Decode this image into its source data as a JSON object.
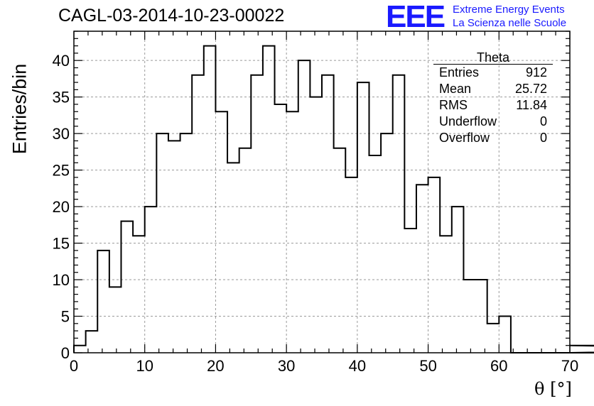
{
  "title": "CAGL-03-2014-10-23-00022",
  "logo": {
    "mark": "EEE",
    "line1": "Extreme Energy Events",
    "line2": "La Scienza nelle Scuole",
    "color": "#1a1aff"
  },
  "stats": {
    "name": "Theta",
    "rows": [
      {
        "label": "Entries",
        "value": "912"
      },
      {
        "label": "Mean",
        "value": "25.72"
      },
      {
        "label": "RMS",
        "value": "11.84"
      },
      {
        "label": "Underflow",
        "value": "0"
      },
      {
        "label": "Overflow",
        "value": "0"
      }
    ]
  },
  "chart_data": {
    "type": "histogram",
    "ylabel": "Entries/bin",
    "xlabel": "θ [°]",
    "xlim": [
      0,
      70
    ],
    "ylim": [
      0,
      44
    ],
    "xticks": [
      0,
      10,
      20,
      30,
      40,
      50,
      60,
      70
    ],
    "yticks": [
      0,
      5,
      10,
      15,
      20,
      25,
      30,
      35,
      40
    ],
    "grid": true,
    "bin_width": 1.6667,
    "bin_values": [
      1,
      3,
      14,
      9,
      18,
      16,
      20,
      30,
      29,
      30,
      38,
      42,
      33,
      26,
      28,
      38,
      42,
      34,
      33,
      40,
      35,
      38,
      28,
      24,
      37,
      27,
      30,
      38,
      17,
      23,
      24,
      16,
      20,
      10,
      10,
      4,
      5,
      0,
      0,
      0,
      0,
      0,
      0,
      0,
      0,
      0,
      0,
      0,
      0,
      0,
      0,
      0,
      0,
      0,
      0,
      0,
      0,
      0,
      0,
      0,
      0,
      0,
      0,
      0,
      0,
      0,
      0,
      0,
      0,
      0,
      0,
      0,
      0,
      0,
      0,
      0,
      0,
      0,
      1,
      0,
      1,
      0
    ]
  }
}
